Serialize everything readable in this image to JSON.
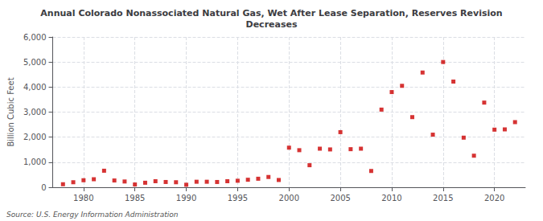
{
  "chart_data": {
    "type": "scatter",
    "title": "Annual Colorado Nonassociated Natural Gas, Wet After Lease Separation, Reserves Revision\nDecreases",
    "ylabel": "Billion Cubic Feet",
    "annotation": "Source: U.S. Energy Information Administration",
    "color": "#cc0000",
    "marker": "square",
    "grid": true,
    "x": [
      1978,
      1979,
      1980,
      1981,
      1982,
      1983,
      1984,
      1985,
      1986,
      1987,
      1988,
      1989,
      1990,
      1991,
      1992,
      1993,
      1994,
      1995,
      1996,
      1997,
      1998,
      1999,
      2000,
      2001,
      2002,
      2003,
      2004,
      2005,
      2006,
      2007,
      2008,
      2009,
      2010,
      2011,
      2012,
      2013,
      2014,
      2015,
      2016,
      2017,
      2018,
      2019,
      2020,
      2021,
      2022
    ],
    "values": [
      120,
      200,
      280,
      320,
      660,
      270,
      230,
      110,
      180,
      240,
      210,
      200,
      100,
      220,
      220,
      210,
      240,
      260,
      300,
      340,
      410,
      290,
      1580,
      1480,
      880,
      1540,
      1510,
      2200,
      1520,
      1540,
      650,
      3100,
      3800,
      4050,
      2800,
      4580,
      2100,
      5000,
      4220,
      1980,
      1260,
      3380,
      2300,
      2310,
      2600
    ],
    "xlim": [
      1977,
      2023
    ],
    "xticks": [
      1980,
      1985,
      1990,
      1995,
      2000,
      2005,
      2010,
      2015,
      2020
    ],
    "ylim": [
      0,
      6000
    ],
    "yticks": [
      0,
      {
        "value": 1000,
        "label": "1,000"
      },
      {
        "value": 2000,
        "label": "2,000"
      },
      {
        "value": 3000,
        "label": "3,000"
      },
      {
        "value": 4000,
        "label": "4,000"
      },
      {
        "value": 5000,
        "label": "5,000"
      },
      {
        "value": 6000,
        "label": "6,000"
      }
    ]
  }
}
